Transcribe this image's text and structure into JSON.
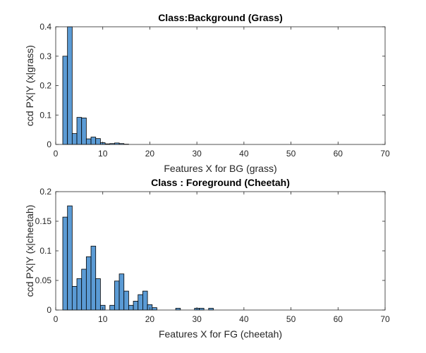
{
  "chart_data": [
    {
      "type": "bar",
      "title": "Class:Background (Grass)",
      "xlabel": "Features X for BG (grass)",
      "ylabel": "ccd PX|Y (x|grass)",
      "xlim": [
        0,
        70
      ],
      "ylim": [
        0,
        0.4
      ],
      "xticks": [
        "0",
        "10",
        "20",
        "30",
        "40",
        "50",
        "60",
        "70"
      ],
      "yticks": [
        "0",
        "0.1",
        "0.2",
        "0.3",
        "0.4"
      ],
      "bar_color": "#5b9bd5",
      "edge_color": "#000000",
      "grid": false,
      "x": [
        2,
        3,
        4,
        5,
        6,
        7,
        8,
        9,
        10,
        11,
        12,
        13,
        14,
        15
      ],
      "values": [
        0.3,
        0.4,
        0.037,
        0.092,
        0.09,
        0.019,
        0.025,
        0.02,
        0.006,
        0.002,
        0.003,
        0.005,
        0.003,
        0.001
      ]
    },
    {
      "type": "bar",
      "title": "Class : Foreground (Cheetah)",
      "xlabel": "Features X for FG (cheetah)",
      "ylabel": "ccd PX|Y (x|cheetah)",
      "xlim": [
        0,
        70
      ],
      "ylim": [
        0,
        0.2
      ],
      "xticks": [
        "0",
        "10",
        "20",
        "30",
        "40",
        "50",
        "60",
        "70"
      ],
      "yticks": [
        "0",
        "0.05",
        "0.1",
        "0.15",
        "0.2"
      ],
      "bar_color": "#5b9bd5",
      "edge_color": "#000000",
      "grid": false,
      "x": [
        2,
        3,
        4,
        5,
        6,
        7,
        8,
        9,
        10,
        11,
        12,
        13,
        14,
        15,
        16,
        17,
        18,
        19,
        20,
        21,
        26,
        30,
        31,
        33
      ],
      "values": [
        0.157,
        0.176,
        0.04,
        0.053,
        0.069,
        0.09,
        0.108,
        0.053,
        0.008,
        0.0,
        0.008,
        0.049,
        0.061,
        0.032,
        0.008,
        0.015,
        0.026,
        0.032,
        0.009,
        0.004,
        0.003,
        0.003,
        0.003,
        0.003
      ]
    }
  ]
}
